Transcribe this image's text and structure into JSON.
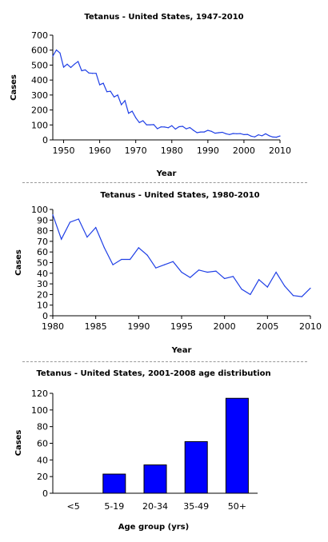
{
  "chart_data": [
    {
      "type": "line",
      "title": "Tetanus - United States, 1947-2010",
      "xlabel": "Year",
      "ylabel": "Cases",
      "xlim": [
        1947,
        2010
      ],
      "ylim": [
        0,
        700
      ],
      "xticks": [
        1950,
        1960,
        1970,
        1980,
        1990,
        2000,
        2010
      ],
      "yticks": [
        0,
        100,
        200,
        300,
        400,
        500,
        600,
        700
      ],
      "grid": false,
      "color": "#1f3fe6",
      "x": [
        1947,
        1948,
        1949,
        1950,
        1951,
        1952,
        1953,
        1954,
        1955,
        1956,
        1957,
        1958,
        1959,
        1960,
        1961,
        1962,
        1963,
        1964,
        1965,
        1966,
        1967,
        1968,
        1969,
        1970,
        1971,
        1972,
        1973,
        1974,
        1975,
        1976,
        1977,
        1978,
        1979,
        1980,
        1981,
        1982,
        1983,
        1984,
        1985,
        1986,
        1987,
        1988,
        1989,
        1990,
        1991,
        1992,
        1993,
        1994,
        1995,
        1996,
        1997,
        1998,
        1999,
        2000,
        2001,
        2002,
        2003,
        2004,
        2005,
        2006,
        2007,
        2008,
        2009,
        2010
      ],
      "y": [
        560,
        601,
        581,
        486,
        506,
        484,
        506,
        524,
        462,
        468,
        447,
        445,
        445,
        368,
        379,
        322,
        325,
        287,
        300,
        235,
        263,
        178,
        192,
        148,
        116,
        128,
        101,
        101,
        102,
        75,
        87,
        86,
        81,
        95,
        72,
        88,
        91,
        74,
        83,
        64,
        48,
        53,
        53,
        64,
        57,
        45,
        48,
        51,
        41,
        36,
        43,
        41,
        42,
        35,
        37,
        25,
        20,
        34,
        27,
        41,
        28,
        19,
        18,
        26
      ]
    },
    {
      "type": "line",
      "title": "Tetanus - United States, 1980-2010",
      "xlabel": "Year",
      "ylabel": "Cases",
      "xlim": [
        1980,
        2010
      ],
      "ylim": [
        0,
        100
      ],
      "xticks": [
        1980,
        1985,
        1990,
        1995,
        2000,
        2005,
        2010
      ],
      "yticks": [
        0,
        10,
        20,
        30,
        40,
        50,
        60,
        70,
        80,
        90,
        100
      ],
      "grid": false,
      "color": "#1f3fe6",
      "x": [
        1980,
        1981,
        1982,
        1983,
        1984,
        1985,
        1986,
        1987,
        1988,
        1989,
        1990,
        1991,
        1992,
        1993,
        1994,
        1995,
        1996,
        1997,
        1998,
        1999,
        2000,
        2001,
        2002,
        2003,
        2004,
        2005,
        2006,
        2007,
        2008,
        2009,
        2010
      ],
      "y": [
        95,
        72,
        88,
        91,
        74,
        83,
        64,
        48,
        53,
        53,
        64,
        57,
        45,
        48,
        51,
        41,
        36,
        43,
        41,
        42,
        35,
        37,
        25,
        20,
        34,
        27,
        41,
        28,
        19,
        18,
        26
      ]
    },
    {
      "type": "bar",
      "title": "Tetanus - United States, 2001-2008 age distribution",
      "xlabel": "Age group (yrs)",
      "ylabel": "Cases",
      "ylim": [
        0,
        120
      ],
      "yticks": [
        0,
        20,
        40,
        60,
        80,
        100,
        120
      ],
      "grid": false,
      "color": "#0000ff",
      "categories": [
        "<5",
        "5-19",
        "20-34",
        "35-49",
        "50+"
      ],
      "values": [
        0,
        23,
        34,
        62,
        114
      ]
    }
  ]
}
